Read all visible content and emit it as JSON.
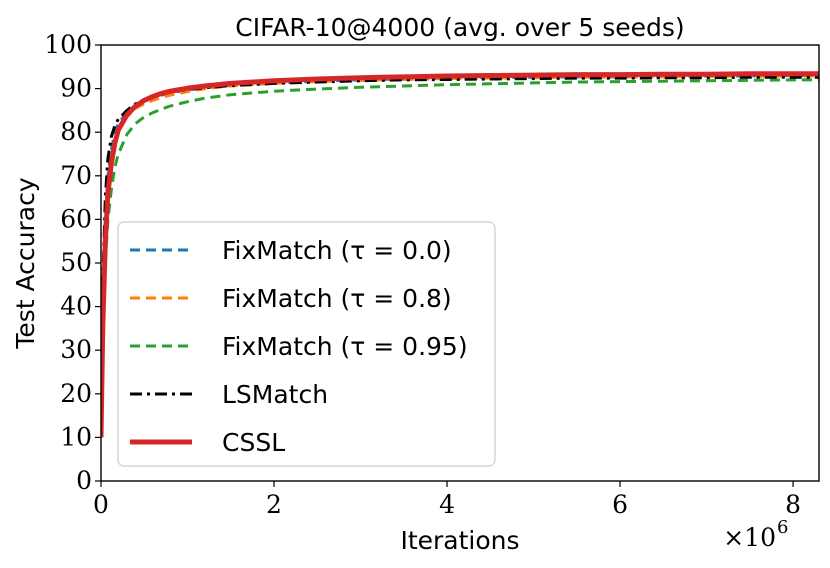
{
  "chart_data": {
    "type": "line",
    "title": "CIFAR-10@4000 (avg. over 5 seeds)",
    "xlabel": "Iterations",
    "ylabel": "Test Accuracy",
    "x_multiplier_label": "×10",
    "x_multiplier_exp": "6",
    "xlim": [
      0,
      8.3
    ],
    "ylim": [
      0,
      100
    ],
    "xticks": [
      0,
      2,
      4,
      6,
      8
    ],
    "yticks": [
      0,
      10,
      20,
      30,
      40,
      50,
      60,
      70,
      80,
      90,
      100
    ],
    "legend_position": "lower-left",
    "series": [
      {
        "name": "FixMatch (τ = 0.0)",
        "legend_label": "FixMatch (τ = 0.0)",
        "color": "#1f77b4",
        "style": "dashed",
        "x": [
          0,
          0.02,
          0.05,
          0.08,
          0.12,
          0.16,
          0.2,
          0.3,
          0.4,
          0.5,
          0.6,
          0.7,
          0.8,
          1.0,
          1.2,
          1.5,
          2.0,
          2.5,
          3.0,
          3.5,
          4.0,
          4.5,
          5.0,
          5.5,
          6.0,
          6.5,
          7.0,
          7.5,
          8.0,
          8.3
        ],
        "y": [
          10,
          40,
          60,
          70,
          76,
          80,
          82,
          84.5,
          86,
          87,
          88,
          88.5,
          89,
          89.7,
          90.2,
          90.8,
          91.3,
          91.7,
          92,
          92.2,
          92.4,
          92.5,
          92.6,
          92.7,
          92.7,
          92.8,
          92.9,
          92.9,
          93,
          93
        ]
      },
      {
        "name": "FixMatch (τ = 0.8)",
        "legend_label": "FixMatch (τ = 0.8)",
        "color": "#ff7f0e",
        "style": "dashed",
        "x": [
          0,
          0.02,
          0.05,
          0.08,
          0.12,
          0.16,
          0.2,
          0.3,
          0.4,
          0.5,
          0.6,
          0.7,
          0.8,
          1.0,
          1.2,
          1.5,
          2.0,
          2.5,
          3.0,
          3.5,
          4.0,
          4.5,
          5.0,
          5.5,
          6.0,
          6.5,
          7.0,
          7.5,
          8.0,
          8.3
        ],
        "y": [
          10,
          38,
          58,
          68,
          74,
          78,
          80.5,
          83.5,
          85.5,
          86.5,
          87.3,
          88,
          88.5,
          89.3,
          90,
          90.6,
          91.2,
          91.6,
          91.9,
          92.1,
          92.3,
          92.4,
          92.5,
          92.6,
          92.6,
          92.7,
          92.8,
          92.8,
          92.9,
          92.9
        ]
      },
      {
        "name": "FixMatch (τ = 0.95)",
        "legend_label": "FixMatch (τ = 0.95)",
        "color": "#2ca02c",
        "style": "dashed",
        "x": [
          0,
          0.02,
          0.05,
          0.08,
          0.12,
          0.16,
          0.2,
          0.3,
          0.4,
          0.5,
          0.6,
          0.7,
          0.8,
          1.0,
          1.2,
          1.5,
          2.0,
          2.5,
          3.0,
          3.5,
          4.0,
          4.5,
          5.0,
          5.5,
          6.0,
          6.5,
          7.0,
          7.5,
          8.0,
          8.3
        ],
        "y": [
          10,
          30,
          50,
          60,
          67,
          72,
          75,
          79.5,
          82,
          83.5,
          84.5,
          85.3,
          86,
          87,
          87.8,
          88.6,
          89.4,
          89.9,
          90.3,
          90.6,
          90.9,
          91.1,
          91.3,
          91.5,
          91.6,
          91.7,
          91.8,
          91.9,
          92,
          92
        ]
      },
      {
        "name": "LSMatch",
        "legend_label": "LSMatch",
        "color": "#000000",
        "style": "dashdot",
        "x": [
          0,
          0.02,
          0.05,
          0.08,
          0.12,
          0.16,
          0.2,
          0.3,
          0.4,
          0.5,
          0.6,
          0.7,
          0.8,
          1.0,
          1.2,
          1.5,
          2.0,
          2.5,
          3.0,
          3.5,
          4.0,
          4.5,
          5.0,
          5.5,
          6.0,
          6.5,
          7.0,
          7.5,
          8.0,
          8.3
        ],
        "y": [
          10,
          45,
          65,
          74,
          79,
          81.5,
          83,
          85,
          86.5,
          87.5,
          88.2,
          88.8,
          89.2,
          89.8,
          90.2,
          90.7,
          91.2,
          91.5,
          91.8,
          92,
          92.1,
          92.2,
          92.3,
          92.4,
          92.4,
          92.5,
          92.5,
          92.6,
          92.6,
          92.6
        ]
      },
      {
        "name": "CSSL",
        "legend_label": "CSSL",
        "color": "#d62728",
        "style": "solid",
        "x": [
          0,
          0.02,
          0.05,
          0.08,
          0.12,
          0.16,
          0.2,
          0.3,
          0.4,
          0.5,
          0.6,
          0.7,
          0.8,
          1.0,
          1.2,
          1.5,
          2.0,
          2.5,
          3.0,
          3.5,
          4.0,
          4.5,
          5.0,
          5.5,
          6.0,
          6.5,
          7.0,
          7.5,
          8.0,
          8.3
        ],
        "y": [
          10,
          35,
          55,
          66,
          73,
          77.5,
          80.5,
          84,
          86,
          87.3,
          88.2,
          88.9,
          89.4,
          90.1,
          90.6,
          91.2,
          91.8,
          92.2,
          92.5,
          92.7,
          92.9,
          93,
          93.1,
          93.2,
          93.2,
          93.3,
          93.3,
          93.4,
          93.4,
          93.4
        ]
      }
    ]
  }
}
